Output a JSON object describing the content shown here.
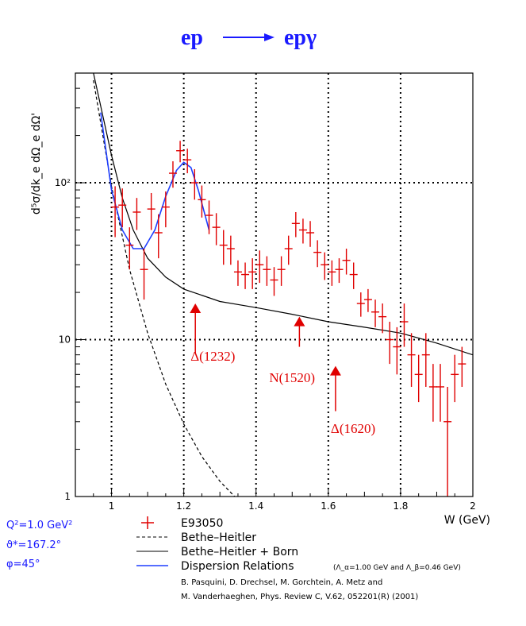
{
  "chart_data": {
    "type": "scatter",
    "title_left": "ep",
    "title_right": "epγ",
    "xlabel": "W (GeV)",
    "ylabel": "d⁵σ/dk_e dΩ_e dΩ'",
    "xlim": [
      0.9,
      2.0
    ],
    "ylim": [
      1,
      500
    ],
    "yscale": "log",
    "grid": true,
    "x_ticks": [
      1,
      1.2,
      1.4,
      1.6,
      1.8,
      2
    ],
    "x_tick_labels": [
      "1",
      "1.2",
      "1.4",
      "1.6",
      "1.8",
      "2"
    ],
    "y_ticks": [
      1,
      10,
      100
    ],
    "y_tick_labels": [
      "1",
      "10",
      "10²"
    ],
    "series": [
      {
        "name": "E93050",
        "kind": "points",
        "color": "#e00000",
        "x": [
          1.01,
          1.03,
          1.05,
          1.07,
          1.09,
          1.11,
          1.13,
          1.15,
          1.17,
          1.19,
          1.21,
          1.23,
          1.25,
          1.27,
          1.29,
          1.31,
          1.33,
          1.35,
          1.37,
          1.39,
          1.41,
          1.43,
          1.45,
          1.47,
          1.49,
          1.51,
          1.53,
          1.55,
          1.57,
          1.59,
          1.61,
          1.63,
          1.65,
          1.67,
          1.69,
          1.71,
          1.73,
          1.75,
          1.77,
          1.79,
          1.81,
          1.83,
          1.85,
          1.87,
          1.89,
          1.91,
          1.93,
          1.95,
          1.97
        ],
        "y": [
          70,
          72,
          40,
          65,
          28,
          68,
          48,
          70,
          115,
          160,
          140,
          100,
          78,
          62,
          52,
          40,
          38,
          27,
          26,
          27,
          30,
          28,
          24,
          28,
          38,
          55,
          50,
          48,
          36,
          30,
          27,
          28,
          32,
          26,
          17,
          18,
          15,
          14,
          10,
          9,
          13,
          8,
          6,
          8,
          5,
          5,
          3,
          6,
          7
        ],
        "err": [
          25,
          20,
          12,
          15,
          10,
          18,
          15,
          18,
          22,
          25,
          25,
          22,
          18,
          15,
          12,
          10,
          8,
          5,
          5,
          6,
          7,
          6,
          5,
          6,
          8,
          10,
          9,
          9,
          7,
          6,
          5,
          5,
          6,
          5,
          3,
          3,
          3,
          3,
          3,
          3,
          4,
          3,
          2,
          3,
          2,
          2,
          2,
          2,
          2
        ]
      },
      {
        "name": "Bethe–Heitler",
        "kind": "line",
        "style": "dashed",
        "color": "#000000",
        "x": [
          0.95,
          1.0,
          1.05,
          1.1,
          1.15,
          1.2,
          1.25,
          1.3,
          1.35
        ],
        "y": [
          450,
          95,
          28,
          11,
          5.2,
          2.9,
          1.8,
          1.25,
          0.95
        ]
      },
      {
        "name": "Bethe–Heitler + Born",
        "kind": "line",
        "style": "solid",
        "color": "#000000",
        "x": [
          0.95,
          1.0,
          1.03,
          1.06,
          1.1,
          1.15,
          1.2,
          1.3,
          1.4,
          1.5,
          1.6,
          1.7,
          1.8,
          1.9,
          2.0
        ],
        "y": [
          500,
          150,
          80,
          50,
          33,
          25,
          21,
          17.5,
          16,
          14.5,
          13,
          12,
          11,
          9.5,
          8
        ]
      },
      {
        "name": "Dispersion Relations",
        "kind": "line",
        "style": "solid",
        "color": "#1f3fff",
        "x": [
          0.97,
          1.0,
          1.03,
          1.06,
          1.09,
          1.12,
          1.15,
          1.18,
          1.2,
          1.22,
          1.24,
          1.27
        ],
        "y": [
          280,
          90,
          50,
          38,
          38,
          50,
          82,
          120,
          135,
          125,
          90,
          50
        ]
      }
    ],
    "annotations": [
      {
        "label": "Δ(1232)",
        "x": 1.232
      },
      {
        "label": "N(1520)",
        "x": 1.52
      },
      {
        "label": "Δ(1620)",
        "x": 1.62
      }
    ],
    "parameters": [
      "Q²=1.0 GeV²",
      "ϑ*=167.2°",
      "φ=45°"
    ],
    "legend": {
      "placement": "below-plot",
      "entries": [
        "E93050",
        "Bethe–Heitler",
        "Bethe–Heitler + Born",
        "Dispersion Relations"
      ],
      "dr_note": "(Λ_α=1.00 GeV and Λ_β=0.46 GeV)",
      "citation_1": "B. Pasquini, D. Drechsel, M. Gorchtein, A. Metz and",
      "citation_2": "M. Vanderhaeghen, Phys. Review C, V.62, 052201(R) (2001)"
    }
  },
  "colors": {
    "title": "#1a1aff",
    "data": "#e00000",
    "dr": "#1f3fff",
    "axis": "#000000"
  }
}
